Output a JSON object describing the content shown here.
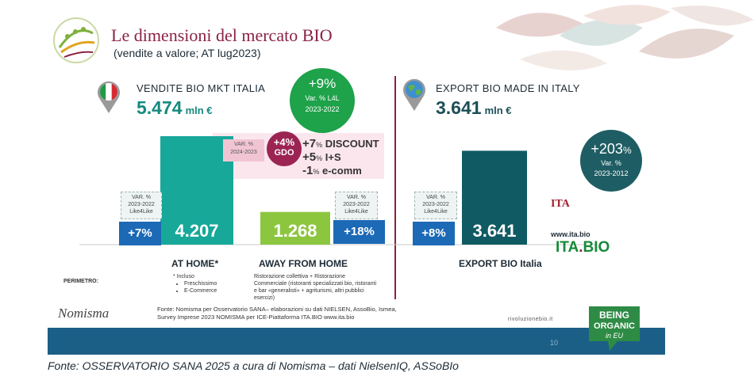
{
  "header": {
    "title": "Le dimensioni del mercato  BIO",
    "subtitle": "(vendite a valore; AT lug2023)"
  },
  "left_kpi": {
    "label": "VENDITE BIO MKT ITALIA",
    "value": "5.474",
    "unit": "mln €",
    "var_big": "+9%",
    "var_line1": "Var. % L4L",
    "var_line2": "2023-2022"
  },
  "right_kpi": {
    "label": "EXPORT BIO MADE IN ITALY",
    "value": "3.641",
    "unit": "mln €",
    "var_big": "+203",
    "var_pct": "%",
    "var_line1": "Var. %",
    "var_line2": "2023-2012"
  },
  "gdo": {
    "var_line1": "VAR. %",
    "var_line2": "2024-2023",
    "circle_value": "+4%",
    "circle_label": "GDO",
    "items": [
      {
        "num": "+7",
        "unit": "%",
        "text": " DISCOUNT"
      },
      {
        "num": "+5",
        "unit": "%",
        "text": " I+S"
      },
      {
        "num": "-1",
        "unit": "%",
        "text": " e-comm"
      }
    ]
  },
  "var_boxes": {
    "home": {
      "l1": "VAR. %",
      "l2": "2023-2022",
      "l3": "Like4Like",
      "value": "+7%"
    },
    "away": {
      "l1": "VAR. %",
      "l2": "2023-2022",
      "l3": "Like4Like",
      "value": "+18%"
    },
    "export": {
      "l1": "VAR. %",
      "l2": "2023-2022",
      "l3": "Like4Like",
      "value": "+8%"
    }
  },
  "chart_data": {
    "type": "bar",
    "categories": [
      "AT HOME*",
      "AWAY FROM HOME",
      "EXPORT BIO Italia"
    ],
    "values": [
      4207,
      1268,
      3641
    ],
    "value_labels": [
      "4.207",
      "1.268",
      "3.641"
    ],
    "unit": "mln €",
    "colors": [
      "#17a89a",
      "#8cc63f",
      "#105a63"
    ],
    "value_colors": [
      "#ffffff",
      "#ffffff",
      "#ffffff"
    ],
    "ylim": [
      0,
      4207
    ]
  },
  "perimetro": {
    "label": "PERIMETRO:",
    "home_head": "* Incluso",
    "home_items": [
      "Freschissimo",
      "E-Commerce"
    ],
    "away_text": "Ristorazione collettiva + Ristorazione Commerciale (ristoranti specializzati bio, ristoranti e bar «generalisti» + agriturismi, altri pubblici esercizi)"
  },
  "footer": {
    "brand": "Nomisma",
    "source": "Fonte: Nomisma per Osservatorio SANA– elaborazioni su dati NIELSEN, AssoBio, Ismea, Survey Imprese 2023 NOMISMA per ICE-Piattaforma ITA.BIO www.ita.bio",
    "rivoluzione": "rivoluzionebio.it",
    "page": "10",
    "ita_mark": "ITA",
    "www": "www.ita.bio",
    "itabio_a": "ITA",
    "itabio_dot": ".",
    "itabio_b": "BIO",
    "being_line1": "BEING",
    "being_line2": "ORGANIC",
    "being_line3": "in EU",
    "bottom_source": "Fonte: OSSERVATORIO SANA 2025 a cura di Nomisma – dati NielsenIQ, ASSoBIo"
  }
}
